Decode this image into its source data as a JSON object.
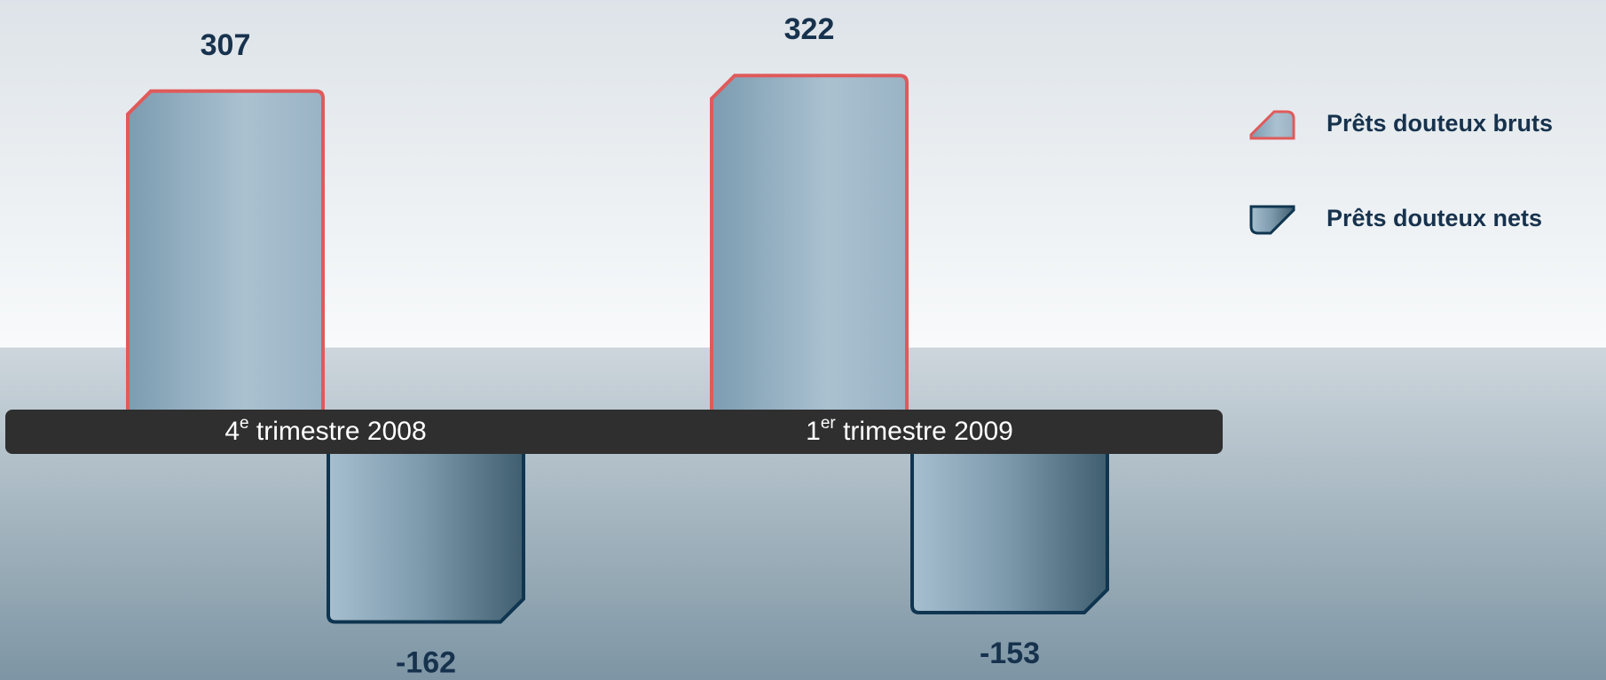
{
  "chart_data": {
    "type": "bar",
    "categories": [
      "4e trimestre 2008",
      "1er trimestre 2009"
    ],
    "series": [
      {
        "name": "Prêts douteux bruts",
        "color": "#e05a5a",
        "values": [
          307,
          322
        ]
      },
      {
        "name": "Prêts douteux nets",
        "color": "#0f3550",
        "values": [
          -162,
          -153
        ]
      }
    ]
  }
}
